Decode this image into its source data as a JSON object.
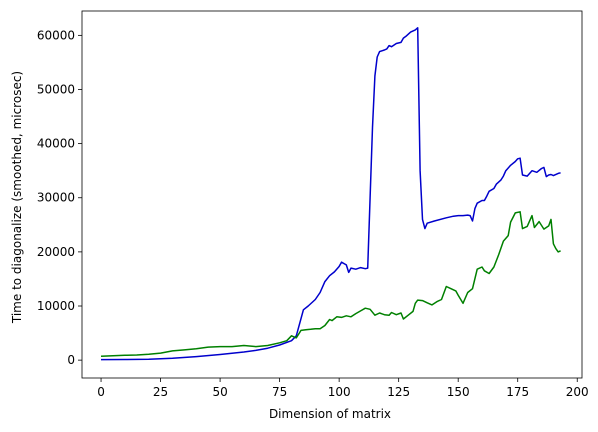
{
  "chart_data": {
    "type": "line",
    "title": "",
    "xlabel": "Dimension of matrix",
    "ylabel": "Time to diagonalize (smoothed, microsec)",
    "xlim": [
      -8,
      202
    ],
    "ylim": [
      -3300,
      64500
    ],
    "xticks": [
      0,
      25,
      50,
      75,
      100,
      125,
      150,
      175,
      200
    ],
    "yticks": [
      0,
      10000,
      20000,
      30000,
      40000,
      50000,
      60000
    ],
    "grid": false,
    "legend": "none",
    "series": [
      {
        "color": "#0000cc",
        "points": [
          [
            0,
            100
          ],
          [
            10,
            120
          ],
          [
            20,
            180
          ],
          [
            30,
            350
          ],
          [
            40,
            650
          ],
          [
            50,
            1050
          ],
          [
            60,
            1500
          ],
          [
            65,
            1800
          ],
          [
            70,
            2200
          ],
          [
            75,
            2800
          ],
          [
            80,
            3600
          ],
          [
            82,
            4500
          ],
          [
            85,
            9300
          ],
          [
            87,
            10000
          ],
          [
            90,
            11200
          ],
          [
            92,
            12500
          ],
          [
            94,
            14500
          ],
          [
            96,
            15600
          ],
          [
            98,
            16300
          ],
          [
            100,
            17300
          ],
          [
            101,
            18100
          ],
          [
            103,
            17600
          ],
          [
            104,
            16200
          ],
          [
            105,
            17000
          ],
          [
            107,
            16800
          ],
          [
            109,
            17100
          ],
          [
            111,
            16900
          ],
          [
            112,
            17000
          ],
          [
            113,
            30000
          ],
          [
            114,
            43000
          ],
          [
            115,
            52500
          ],
          [
            116,
            56000
          ],
          [
            117,
            57000
          ],
          [
            119,
            57300
          ],
          [
            120,
            57500
          ],
          [
            121,
            58100
          ],
          [
            122,
            57900
          ],
          [
            124,
            58500
          ],
          [
            126,
            58700
          ],
          [
            127,
            59500
          ],
          [
            128,
            59800
          ],
          [
            130,
            60600
          ],
          [
            132,
            61000
          ],
          [
            133,
            61400
          ],
          [
            134,
            35000
          ],
          [
            135,
            26000
          ],
          [
            136,
            24300
          ],
          [
            137,
            25300
          ],
          [
            140,
            25700
          ],
          [
            145,
            26300
          ],
          [
            148,
            26600
          ],
          [
            150,
            26700
          ],
          [
            152,
            26700
          ],
          [
            154,
            26800
          ],
          [
            155,
            26700
          ],
          [
            156,
            25700
          ],
          [
            157,
            28000
          ],
          [
            158,
            29000
          ],
          [
            160,
            29500
          ],
          [
            161,
            29500
          ],
          [
            162,
            30300
          ],
          [
            163,
            31200
          ],
          [
            165,
            31700
          ],
          [
            166,
            32500
          ],
          [
            168,
            33300
          ],
          [
            169,
            34000
          ],
          [
            170,
            35000
          ],
          [
            172,
            36000
          ],
          [
            174,
            36700
          ],
          [
            175,
            37200
          ],
          [
            176,
            37300
          ],
          [
            177,
            34200
          ],
          [
            179,
            34000
          ],
          [
            181,
            35000
          ],
          [
            183,
            34700
          ],
          [
            185,
            35400
          ],
          [
            186,
            35600
          ],
          [
            187,
            33900
          ],
          [
            188,
            34200
          ],
          [
            189,
            34300
          ],
          [
            190,
            34100
          ],
          [
            192,
            34500
          ],
          [
            193,
            34600
          ]
        ]
      },
      {
        "color": "#008000",
        "points": [
          [
            0,
            700
          ],
          [
            5,
            800
          ],
          [
            10,
            900
          ],
          [
            15,
            950
          ],
          [
            20,
            1100
          ],
          [
            25,
            1300
          ],
          [
            30,
            1700
          ],
          [
            35,
            1900
          ],
          [
            40,
            2100
          ],
          [
            45,
            2400
          ],
          [
            50,
            2500
          ],
          [
            55,
            2500
          ],
          [
            60,
            2700
          ],
          [
            65,
            2500
          ],
          [
            70,
            2700
          ],
          [
            75,
            3200
          ],
          [
            78,
            3600
          ],
          [
            80,
            4500
          ],
          [
            82,
            4100
          ],
          [
            84,
            5500
          ],
          [
            86,
            5600
          ],
          [
            88,
            5700
          ],
          [
            90,
            5800
          ],
          [
            92,
            5800
          ],
          [
            94,
            6400
          ],
          [
            96,
            7500
          ],
          [
            97,
            7300
          ],
          [
            99,
            8000
          ],
          [
            101,
            7900
          ],
          [
            103,
            8200
          ],
          [
            105,
            8000
          ],
          [
            107,
            8600
          ],
          [
            109,
            9100
          ],
          [
            111,
            9600
          ],
          [
            113,
            9400
          ],
          [
            115,
            8300
          ],
          [
            117,
            8700
          ],
          [
            119,
            8400
          ],
          [
            121,
            8300
          ],
          [
            122,
            8800
          ],
          [
            124,
            8400
          ],
          [
            126,
            8700
          ],
          [
            127,
            7600
          ],
          [
            129,
            8300
          ],
          [
            131,
            9000
          ],
          [
            132,
            10500
          ],
          [
            133,
            11100
          ],
          [
            135,
            11000
          ],
          [
            137,
            10600
          ],
          [
            139,
            10200
          ],
          [
            141,
            10800
          ],
          [
            143,
            11200
          ],
          [
            145,
            13600
          ],
          [
            147,
            13200
          ],
          [
            149,
            12800
          ],
          [
            150,
            12000
          ],
          [
            152,
            10500
          ],
          [
            154,
            12500
          ],
          [
            156,
            13200
          ],
          [
            158,
            16800
          ],
          [
            160,
            17200
          ],
          [
            161,
            16500
          ],
          [
            163,
            16000
          ],
          [
            165,
            17200
          ],
          [
            167,
            19500
          ],
          [
            169,
            22000
          ],
          [
            171,
            23000
          ],
          [
            172,
            25500
          ],
          [
            174,
            27200
          ],
          [
            176,
            27400
          ],
          [
            177,
            24300
          ],
          [
            179,
            24700
          ],
          [
            181,
            26700
          ],
          [
            182,
            24500
          ],
          [
            184,
            25600
          ],
          [
            186,
            24200
          ],
          [
            188,
            24800
          ],
          [
            189,
            26000
          ],
          [
            190,
            21500
          ],
          [
            191,
            20600
          ],
          [
            192,
            20000
          ],
          [
            193,
            20200
          ]
        ]
      }
    ]
  }
}
